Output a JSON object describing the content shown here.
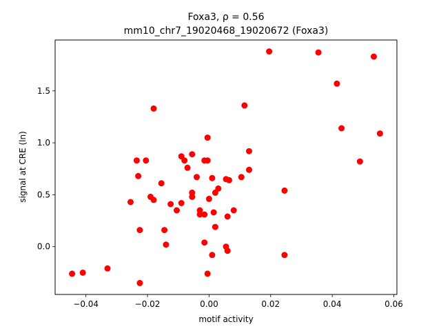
{
  "chart_data": {
    "type": "scatter",
    "title_line1": "Foxa3, ρ = 0.56",
    "title_line2": "mm10_chr7_19020468_19020672 (Foxa3)",
    "xlabel": "motif activity",
    "ylabel": "signal at CRE (ln)",
    "xlim": [
      -0.05,
      0.061
    ],
    "ylim": [
      -0.46,
      1.99
    ],
    "x_ticks": [
      -0.04,
      -0.02,
      0.0,
      0.02,
      0.04,
      0.06
    ],
    "x_tick_labels": [
      "−0.04",
      "−0.02",
      "0.00",
      "0.02",
      "0.04",
      "0.06"
    ],
    "y_ticks": [
      0.0,
      0.5,
      1.0,
      1.5
    ],
    "y_tick_labels": [
      "0.0",
      "0.5",
      "1.0",
      "1.5"
    ],
    "grid": false,
    "marker_color": "#ff0000",
    "points": [
      [
        -0.0445,
        -0.26
      ],
      [
        -0.041,
        -0.25
      ],
      [
        -0.033,
        -0.21
      ],
      [
        -0.0255,
        0.43
      ],
      [
        -0.0235,
        0.83
      ],
      [
        -0.023,
        0.68
      ],
      [
        -0.0225,
        0.16
      ],
      [
        -0.0225,
        -0.35
      ],
      [
        -0.0205,
        0.83
      ],
      [
        -0.019,
        0.48
      ],
      [
        -0.018,
        1.33
      ],
      [
        -0.018,
        0.45
      ],
      [
        -0.0155,
        0.61
      ],
      [
        -0.0145,
        0.16
      ],
      [
        -0.014,
        0.02
      ],
      [
        -0.0125,
        0.41
      ],
      [
        -0.0105,
        0.35
      ],
      [
        -0.009,
        0.87
      ],
      [
        -0.009,
        0.42
      ],
      [
        -0.008,
        0.83
      ],
      [
        -0.007,
        0.76
      ],
      [
        -0.0055,
        0.89
      ],
      [
        -0.0055,
        0.52
      ],
      [
        -0.0055,
        0.48
      ],
      [
        -0.004,
        0.67
      ],
      [
        -0.003,
        0.35
      ],
      [
        -0.003,
        0.31
      ],
      [
        -0.0015,
        0.83
      ],
      [
        -0.0015,
        0.31
      ],
      [
        -0.0015,
        0.04
      ],
      [
        -0.0005,
        1.05
      ],
      [
        -0.0005,
        0.83
      ],
      [
        -0.0005,
        -0.26
      ],
      [
        0.0,
        0.46
      ],
      [
        0.001,
        0.66
      ],
      [
        0.001,
        -0.08
      ],
      [
        0.0015,
        0.33
      ],
      [
        0.002,
        0.52
      ],
      [
        0.002,
        0.19
      ],
      [
        0.003,
        0.56
      ],
      [
        0.0055,
        0.65
      ],
      [
        0.0055,
        0.0
      ],
      [
        0.006,
        0.29
      ],
      [
        0.006,
        -0.04
      ],
      [
        0.0065,
        0.64
      ],
      [
        0.008,
        0.35
      ],
      [
        0.0105,
        0.67
      ],
      [
        0.0115,
        1.36
      ],
      [
        0.013,
        0.92
      ],
      [
        0.013,
        0.74
      ],
      [
        0.0195,
        1.88
      ],
      [
        0.0245,
        0.54
      ],
      [
        0.0245,
        -0.08
      ],
      [
        0.0355,
        1.87
      ],
      [
        0.0415,
        1.57
      ],
      [
        0.043,
        1.14
      ],
      [
        0.049,
        0.82
      ],
      [
        0.0535,
        1.83
      ],
      [
        0.0555,
        1.09
      ]
    ]
  }
}
